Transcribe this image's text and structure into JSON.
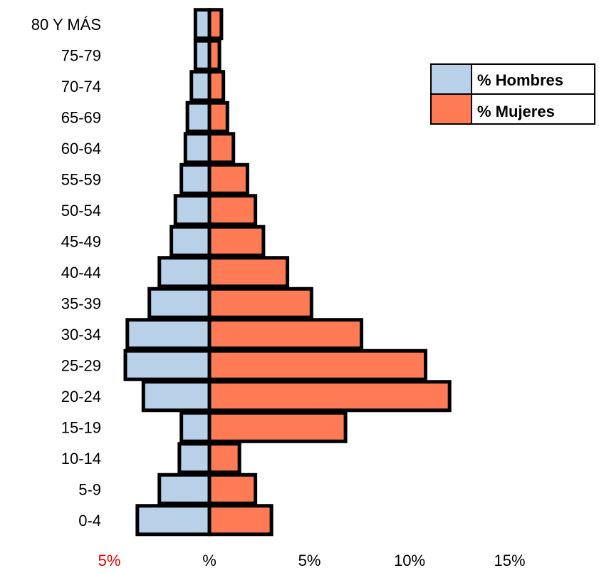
{
  "chart_data": {
    "type": "bar",
    "orientation": "horizontal",
    "layout": "population-pyramid",
    "categories": [
      "0-4",
      "5-9",
      "10-14",
      "15-19",
      "20-24",
      "25-29",
      "30-34",
      "35-39",
      "40-44",
      "45-49",
      "50-54",
      "55-59",
      "60-64",
      "65-69",
      "70-74",
      "75-79",
      "80 Y MÁS"
    ],
    "series": [
      {
        "name": "% Hombres",
        "color": "#b8d0e8",
        "side": "left",
        "values": [
          3.6,
          2.5,
          1.5,
          1.4,
          3.3,
          4.2,
          4.1,
          3.0,
          2.5,
          1.9,
          1.7,
          1.4,
          1.2,
          1.1,
          0.9,
          0.7,
          0.7
        ]
      },
      {
        "name": "% Mujeres",
        "color": "#ff7b55",
        "side": "right",
        "values": [
          3.1,
          2.3,
          1.5,
          6.8,
          12.0,
          10.8,
          7.6,
          5.1,
          3.9,
          2.7,
          2.3,
          1.9,
          1.2,
          0.9,
          0.7,
          0.5,
          0.6
        ]
      }
    ],
    "x_ticks": [
      {
        "value": -5,
        "label": "5%",
        "color": "#e00000"
      },
      {
        "value": 0,
        "label": "%",
        "color": "#000000"
      },
      {
        "value": 5,
        "label": "5%",
        "color": "#000000"
      },
      {
        "value": 10,
        "label": "10%",
        "color": "#000000"
      },
      {
        "value": 15,
        "label": "15%",
        "color": "#000000"
      }
    ],
    "xlim": [
      -5,
      15
    ],
    "grid": false,
    "legend_position": "top-right",
    "bar_border_color": "#000000"
  }
}
